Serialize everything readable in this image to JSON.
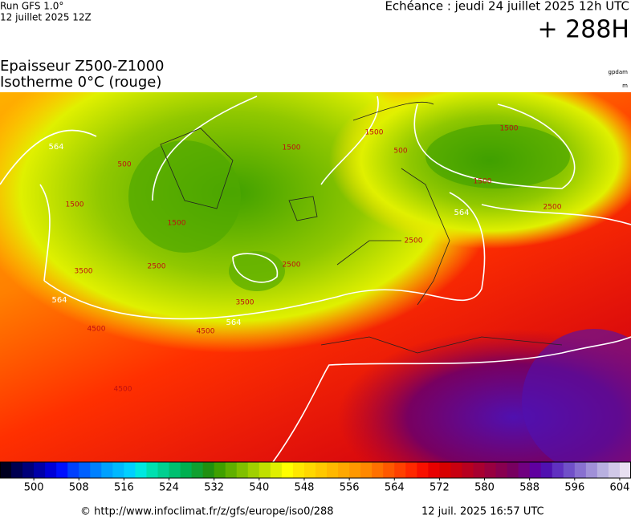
{
  "header": {
    "model": "Run GFS 1.0°",
    "run": "12 juillet 2025 12Z",
    "valid": "Echéance : jeudi 24 juillet 2025 12h UTC",
    "lead": "+ 288H",
    "title": "Epaisseur Z500-Z1000",
    "subtitle": "Isotherme 0°C (rouge)",
    "unit1": "gpdam",
    "unit2": "m"
  },
  "map": {
    "thickness_labels": [
      "564",
      "564",
      "564",
      "564"
    ],
    "freezing_labels": [
      "500",
      "500",
      "1500",
      "1500",
      "1500",
      "1500",
      "1500",
      "1500",
      "2500",
      "2500",
      "2500",
      "2500",
      "3500",
      "3500",
      "4500",
      "4500",
      "4500"
    ]
  },
  "colorbar": {
    "range": [
      494,
      606
    ],
    "ticks": [
      500,
      508,
      516,
      524,
      532,
      540,
      548,
      556,
      564,
      572,
      580,
      588,
      596,
      604
    ],
    "colors": [
      "#000020",
      "#000050",
      "#00007a",
      "#0000a8",
      "#0000d8",
      "#0010ff",
      "#0040ff",
      "#0060ff",
      "#0080ff",
      "#00a0ff",
      "#00b8ff",
      "#00d0ff",
      "#00e8e0",
      "#00e0b0",
      "#00d090",
      "#00c070",
      "#00b050",
      "#10a030",
      "#209010",
      "#40a000",
      "#60b000",
      "#80c000",
      "#a0d000",
      "#c0e000",
      "#e0f000",
      "#ffff00",
      "#ffe800",
      "#ffd800",
      "#ffc800",
      "#ffb800",
      "#ffa800",
      "#ff9800",
      "#ff8800",
      "#ff7000",
      "#ff5800",
      "#ff4000",
      "#ff2800",
      "#f81000",
      "#e80000",
      "#d80000",
      "#c80010",
      "#b80020",
      "#a80030",
      "#980040",
      "#880050",
      "#780060",
      "#700080",
      "#6000a0",
      "#5010b0",
      "#6030c0",
      "#7050c8",
      "#8870d0",
      "#a090d8",
      "#b8b0e0",
      "#d0c8e8",
      "#e8e0f0"
    ]
  },
  "footer": {
    "url": "© http://www.infoclimat.fr/z/gfs/europe/iso0/288",
    "generated": "12 juil. 2025 16:57 UTC"
  }
}
